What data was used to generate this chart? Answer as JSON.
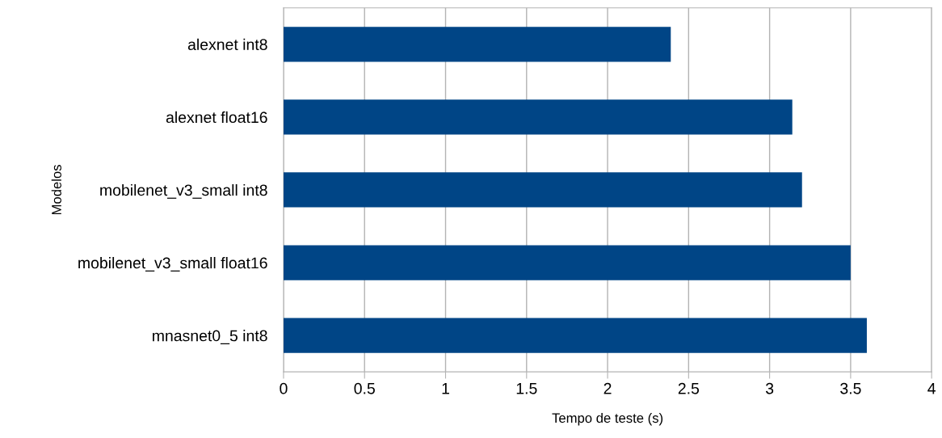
{
  "chart_data": {
    "type": "bar",
    "orientation": "horizontal",
    "xlabel": "Tempo de teste (s)",
    "ylabel": "Modelos",
    "categories": [
      "alexnet int8",
      "alexnet float16",
      "mobilenet_v3_small int8",
      "mobilenet_v3_small float16",
      "mnasnet0_5 int8"
    ],
    "values": [
      2.39,
      3.14,
      3.2,
      3.5,
      3.6
    ],
    "color": "#004586",
    "xlim": [
      0,
      4
    ],
    "xticks": [
      0,
      0.5,
      1,
      1.5,
      2,
      2.5,
      3,
      3.5,
      4
    ],
    "grid": "x",
    "legend": false
  }
}
